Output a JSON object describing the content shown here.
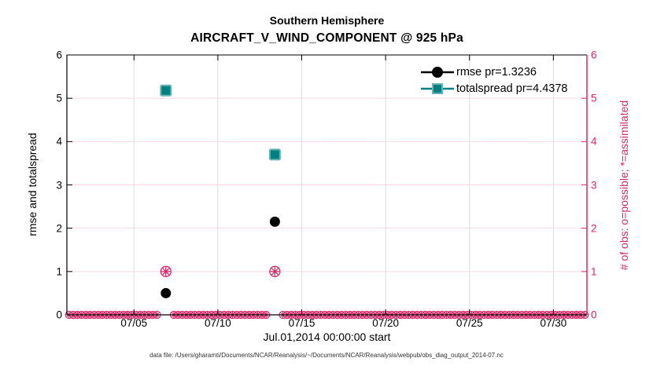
{
  "title": {
    "line1": "Southern Hemisphere",
    "line2": "AIRCRAFT_V_WIND_COMPONENT @ 925 hPa"
  },
  "footer": {
    "data_file_note": "data file: /Users/gharamti/Documents/NCAR/Reanalysis/~/Documents/NCAR/Reanalysis/webpub/obs_diag_output_2014-07.nc"
  },
  "colors": {
    "black": "#000000",
    "teal_fill": "#008081",
    "teal_edge": "#66b5b6",
    "obs_pink": "#d92968",
    "grid_pink": "#f8d7e3",
    "grid_gray": "#dcdcdc"
  },
  "chart_data": {
    "type": "scatter",
    "title": "Southern Hemisphere",
    "subtitle": "AIRCRAFT_V_WIND_COMPONENT @ 925 hPa",
    "xlabel": "Jul.01,2014 00:00:00 start",
    "ylabel_left": "rmse and totalspread",
    "ylabel_right": "# of obs: o=possible; *=assimilated",
    "x_range_days": [
      1,
      32
    ],
    "x_tick_days": [
      5,
      10,
      15,
      20,
      25,
      30
    ],
    "x_tick_labels": [
      "07/05",
      "07/10",
      "07/15",
      "07/20",
      "07/25",
      "07/30"
    ],
    "y_range": [
      0,
      6
    ],
    "y_ticks": [
      0,
      1,
      2,
      3,
      4,
      5,
      6
    ],
    "grid": true,
    "legend_position": "top-right-inside",
    "series": [
      {
        "name": "rmse",
        "legend": "rmse pr=1.3236",
        "marker": "filled-circle",
        "color": "#000000",
        "points": [
          {
            "day": 6.9,
            "date": "07/07",
            "value": 0.5
          },
          {
            "day": 13.4,
            "date": "07/13",
            "value": 2.15
          }
        ]
      },
      {
        "name": "totalspread",
        "legend": "totalspread pr=4.4378",
        "marker": "filled-square",
        "color": "#008081",
        "points": [
          {
            "day": 6.9,
            "date": "07/07",
            "value": 5.18
          },
          {
            "day": 13.4,
            "date": "07/13",
            "value": 3.7
          }
        ]
      },
      {
        "name": "obs-counts",
        "axis": "right",
        "marker": "circle-and-asterisk",
        "color": "#d92968",
        "events": [
          {
            "day": 6.9,
            "date": "07/07",
            "possible": 1,
            "assimilated": 1
          },
          {
            "day": 13.4,
            "date": "07/13",
            "possible": 1,
            "assimilated": 1
          }
        ],
        "baseline_band": {
          "value": 0,
          "from_day": 1.125,
          "to_day": 31.875,
          "step_days": 0.25,
          "note": "possible=0 and assimilated=0 markers at every other time bin"
        }
      }
    ]
  }
}
